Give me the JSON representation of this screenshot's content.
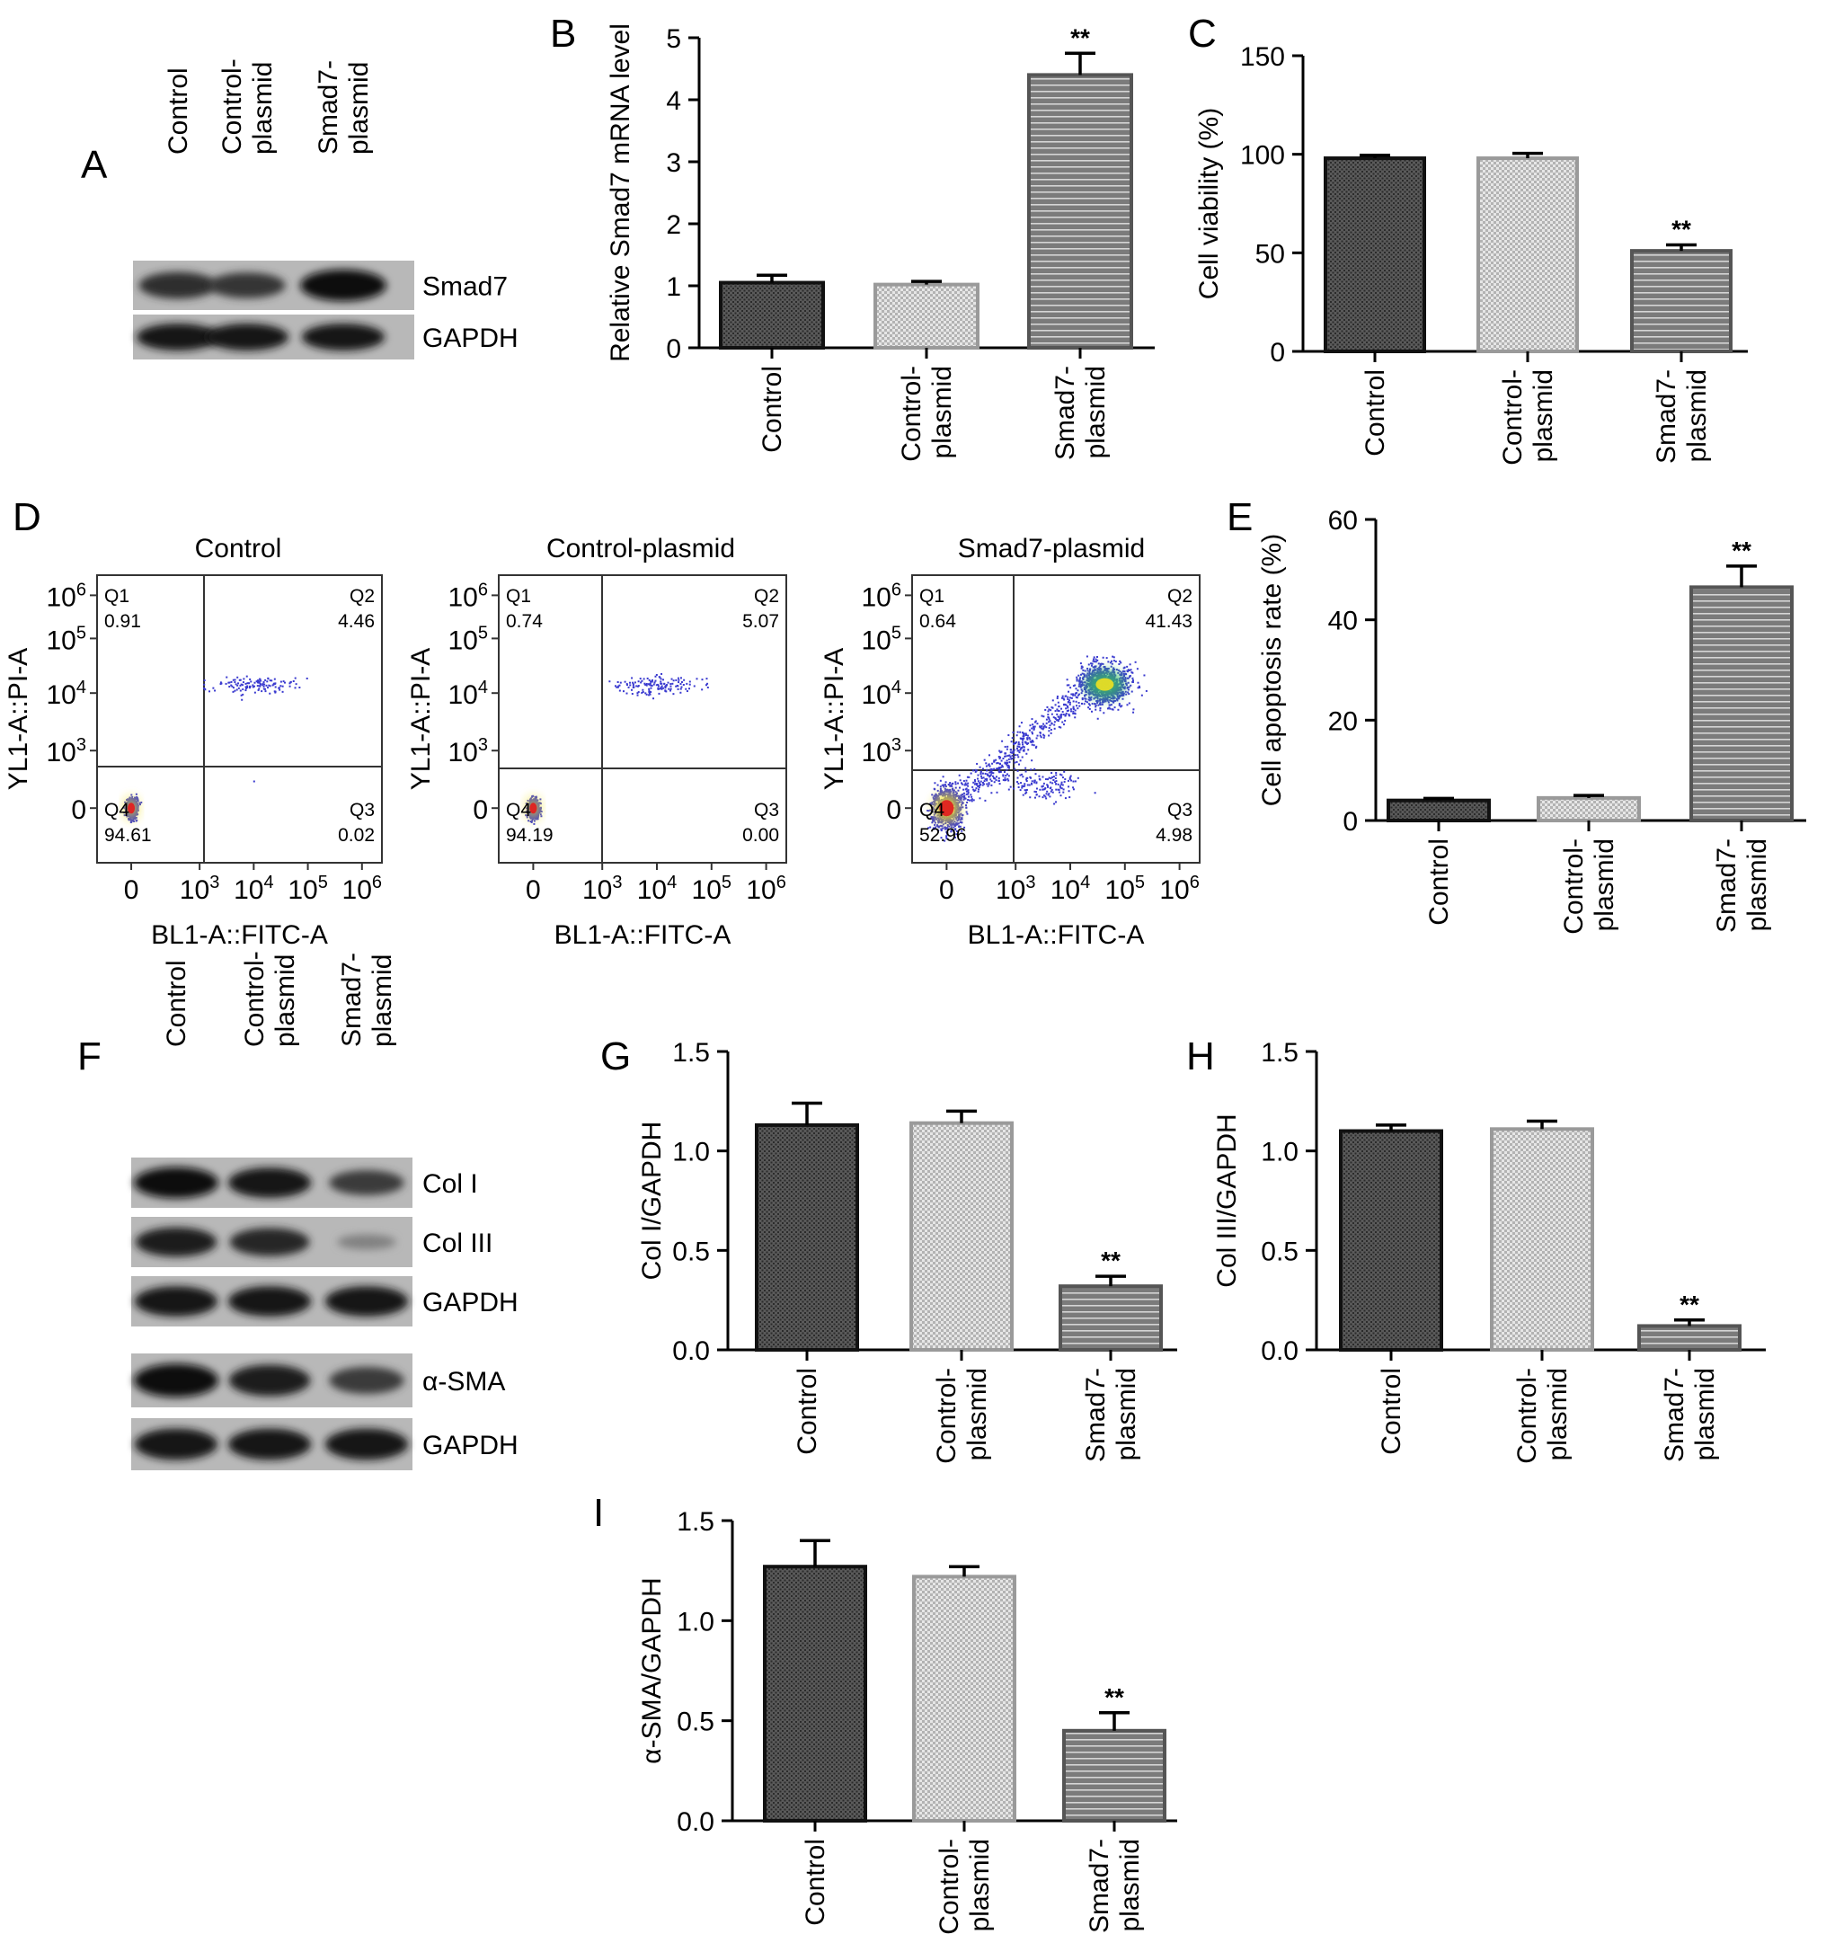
{
  "colors": {
    "bar_control": "#4d4d4d",
    "bar_control_plasmid": "#c8c8c8",
    "bar_smad7_plasmid": "#808080",
    "axis": "#000000",
    "density_low": "#3a3acf",
    "density_high": "#e02020"
  },
  "chart_data": [
    {
      "panel": "A",
      "type": "table",
      "lanes": [
        "Control",
        "Control-\nplasmid",
        "Smad7-\nplasmid"
      ],
      "bands": [
        {
          "label": "Smad7",
          "intensity": [
            0.75,
            0.7,
            1.0
          ]
        },
        {
          "label": "GAPDH",
          "intensity": [
            0.9,
            0.9,
            0.9
          ]
        }
      ]
    },
    {
      "panel": "B",
      "type": "bar",
      "categories": [
        "Control",
        "Control-\nplasmid",
        "Smad7-\nplasmid"
      ],
      "values": [
        1.05,
        1.02,
        4.4
      ],
      "errors": [
        0.12,
        0.05,
        0.35
      ],
      "significance": [
        "",
        "",
        "**"
      ],
      "ylabel": "Relative Smad7 mRNA level",
      "ylim": [
        0,
        5
      ],
      "yticks": [
        0,
        1,
        2,
        3,
        4,
        5
      ]
    },
    {
      "panel": "C",
      "type": "bar",
      "categories": [
        "Control",
        "Control-\nplasmid",
        "Smad7-\nplasmid"
      ],
      "values": [
        98,
        98,
        51
      ],
      "errors": [
        1.5,
        2.5,
        3
      ],
      "significance": [
        "",
        "",
        "**"
      ],
      "ylabel": "Cell viability (%)",
      "ylim": [
        0,
        150
      ],
      "yticks": [
        0,
        50,
        100,
        150
      ]
    },
    {
      "panel": "D",
      "type": "scatter",
      "xlabel": "BL1-A::FITC-A",
      "ylabel": "YL1-A::PI-A",
      "axis_ticks": [
        "0",
        "10^3",
        "10^4",
        "10^5",
        "10^6"
      ],
      "plots": [
        {
          "title": "Control",
          "quadrants": {
            "Q1": "0.91",
            "Q2": "4.46",
            "Q3": "0.02",
            "Q4": "94.61"
          }
        },
        {
          "title": "Control-plasmid",
          "quadrants": {
            "Q1": "0.74",
            "Q2": "5.07",
            "Q3": "0.00",
            "Q4": "94.19"
          }
        },
        {
          "title": "Smad7-plasmid",
          "quadrants": {
            "Q1": "0.64",
            "Q2": "41.43",
            "Q3": "4.98",
            "Q4": "52.96"
          }
        }
      ]
    },
    {
      "panel": "E",
      "type": "bar",
      "categories": [
        "Control",
        "Control-\nplasmid",
        "Smad7-\nplasmid"
      ],
      "values": [
        4,
        4.5,
        46.5
      ],
      "errors": [
        0.4,
        0.5,
        4.2
      ],
      "significance": [
        "",
        "",
        "**"
      ],
      "ylabel": "Cell apoptosis rate (%)",
      "ylim": [
        0,
        60
      ],
      "yticks": [
        0,
        20,
        40,
        60
      ]
    },
    {
      "panel": "F",
      "type": "table",
      "lanes": [
        "Control",
        "Control-\nplasmid",
        "Smad7-\nplasmid"
      ],
      "bands": [
        {
          "label": "Col I",
          "intensity": [
            0.95,
            0.9,
            0.65
          ]
        },
        {
          "label": "Col III",
          "intensity": [
            0.85,
            0.8,
            0.15
          ]
        },
        {
          "label": "GAPDH",
          "intensity": [
            0.9,
            0.9,
            0.9
          ]
        },
        {
          "label": "α-SMA",
          "intensity": [
            0.95,
            0.85,
            0.65
          ]
        },
        {
          "label": "GAPDH",
          "intensity": [
            0.9,
            0.9,
            0.9
          ]
        }
      ]
    },
    {
      "panel": "G",
      "type": "bar",
      "categories": [
        "Control",
        "Control-\nplasmid",
        "Smad7-\nplasmid"
      ],
      "values": [
        1.13,
        1.14,
        0.32
      ],
      "errors": [
        0.11,
        0.06,
        0.05
      ],
      "significance": [
        "",
        "",
        "**"
      ],
      "ylabel": "Col I/GAPDH",
      "ylim": [
        0,
        1.5
      ],
      "yticks": [
        "0.0",
        "0.5",
        "1.0",
        "1.5"
      ]
    },
    {
      "panel": "H",
      "type": "bar",
      "categories": [
        "Control",
        "Control-\nplasmid",
        "Smad7-\nplasmid"
      ],
      "values": [
        1.1,
        1.11,
        0.12
      ],
      "errors": [
        0.03,
        0.04,
        0.03
      ],
      "significance": [
        "",
        "",
        "**"
      ],
      "ylabel": "Col III/GAPDH",
      "ylim": [
        0,
        1.5
      ],
      "yticks": [
        "0.0",
        "0.5",
        "1.0",
        "1.5"
      ]
    },
    {
      "panel": "I",
      "type": "bar",
      "categories": [
        "Control",
        "Control-\nplasmid",
        "Smad7-\nplasmid"
      ],
      "values": [
        1.27,
        1.22,
        0.45
      ],
      "errors": [
        0.13,
        0.05,
        0.09
      ],
      "significance": [
        "",
        "",
        "**"
      ],
      "ylabel": "α-SMA/GAPDH",
      "ylim": [
        0,
        1.5
      ],
      "yticks": [
        "0.0",
        "0.5",
        "1.0",
        "1.5"
      ]
    }
  ]
}
